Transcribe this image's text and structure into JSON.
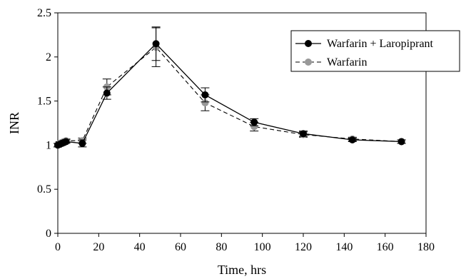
{
  "chart_data": {
    "type": "line",
    "xlabel": "Time, hrs",
    "ylabel": "INR",
    "xlim": [
      0,
      180
    ],
    "ylim": [
      0,
      2.5
    ],
    "xticks": [
      "0",
      "20",
      "40",
      "60",
      "80",
      "100",
      "120",
      "140",
      "160",
      "180"
    ],
    "yticks": [
      "0",
      "0.5",
      "1",
      "1.5",
      "2",
      "2.5"
    ],
    "grid": false,
    "legend_position": "top-right",
    "series": [
      {
        "name": "Warfarin + Laropiprant",
        "color": "#000000",
        "line_style": "solid",
        "x": [
          0,
          1,
          2,
          3,
          4,
          12,
          24,
          48,
          72,
          96,
          120,
          144,
          168
        ],
        "y": [
          1.0,
          1.01,
          1.02,
          1.03,
          1.04,
          1.02,
          1.59,
          2.15,
          1.57,
          1.26,
          1.13,
          1.06,
          1.04
        ],
        "err": [
          0.02,
          0.02,
          0.02,
          0.02,
          0.02,
          0.04,
          0.07,
          0.19,
          0.08,
          0.04,
          0.03,
          0.02,
          0.02
        ]
      },
      {
        "name": "Warfarin",
        "color": "#999999",
        "line_style": "dashed",
        "x": [
          0,
          1,
          2,
          3,
          4,
          12,
          24,
          48,
          72,
          96,
          120,
          144,
          168
        ],
        "y": [
          1.0,
          1.02,
          1.03,
          1.04,
          1.05,
          1.05,
          1.66,
          2.11,
          1.48,
          1.21,
          1.12,
          1.07,
          1.04
        ],
        "err": [
          0.02,
          0.02,
          0.02,
          0.02,
          0.02,
          0.03,
          0.09,
          0.22,
          0.09,
          0.05,
          0.03,
          0.02,
          0.02
        ]
      }
    ]
  }
}
